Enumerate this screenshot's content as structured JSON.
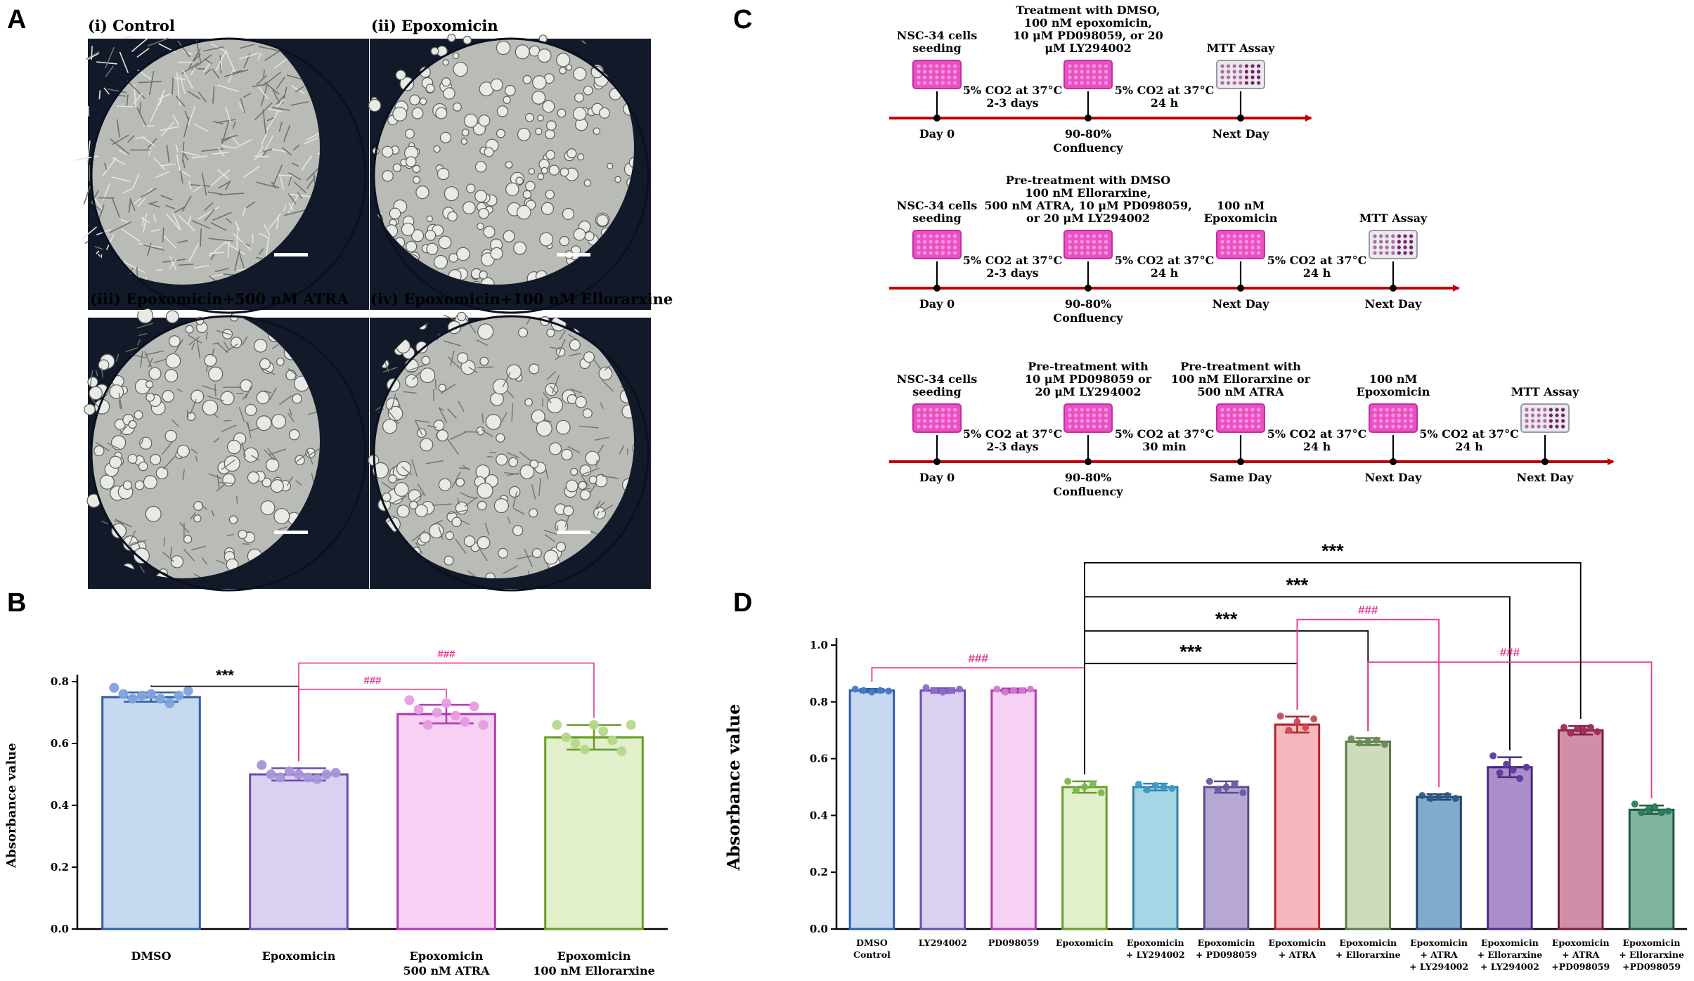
{
  "panels": {
    "a": "A",
    "b": "B",
    "c": "C",
    "d": "D"
  },
  "micrographs": [
    {
      "title": "(i) Control",
      "kind": "dense"
    },
    {
      "title": "(ii) Epoxomicin",
      "kind": "clumps"
    },
    {
      "title": "(iii) Epoxomicin+500 nM ATRA",
      "kind": "mixed"
    },
    {
      "title": "(iv) Epoxomicin+100 nM Ellorarxine",
      "kind": "round"
    }
  ],
  "timelines": [
    {
      "events": [
        {
          "top": [
            "NSC-34 cells",
            "seeding"
          ],
          "icon": "plate-icon",
          "bottom": [
            "Day 0"
          ]
        },
        {
          "top": [
            "Treatment with DMSO,",
            "100 nM epoxomicin,",
            "10 μM PD098059,  or 20",
            "μM LY294002"
          ],
          "icon": "plate-icon",
          "bottom": [
            "90-80%",
            "Confluency"
          ]
        },
        {
          "top": [
            "MTT Assay"
          ],
          "icon": "mtt-plate-icon",
          "bottom": [
            "Next Day"
          ]
        }
      ],
      "intervals": [
        [
          "5% CO2 at 37°C",
          "2-3 days"
        ],
        [
          "5% CO2 at 37°C",
          "24 h"
        ]
      ]
    },
    {
      "events": [
        {
          "top": [
            "NSC-34 cells",
            "seeding"
          ],
          "icon": "plate-icon",
          "bottom": [
            "Day 0"
          ]
        },
        {
          "top": [
            "Pre-treatment with DMSO",
            "100 nM Ellorarxine,",
            "500 nM ATRA, 10 μM PD098059,",
            "or  20 μM LY294002"
          ],
          "icon": "plate-icon",
          "bottom": [
            "90-80%",
            "Confluency"
          ]
        },
        {
          "top": [
            "100 nM",
            "Epoxomicin"
          ],
          "icon": "plate-icon",
          "bottom": [
            "Next Day"
          ]
        },
        {
          "top": [
            "MTT Assay"
          ],
          "icon": "mtt-plate-icon",
          "bottom": [
            "Next Day"
          ]
        }
      ],
      "intervals": [
        [
          "5% CO2 at 37°C",
          "2-3 days"
        ],
        [
          "5% CO2 at 37°C",
          "24 h"
        ],
        [
          "5% CO2 at 37°C",
          "24 h"
        ]
      ]
    },
    {
      "events": [
        {
          "top": [
            "NSC-34 cells",
            "seeding"
          ],
          "icon": "plate-icon",
          "bottom": [
            "Day 0"
          ]
        },
        {
          "top": [
            "Pre-treatment with",
            "10 μM PD098059 or",
            "20 μM LY294002"
          ],
          "icon": "plate-icon",
          "bottom": [
            "90-80%",
            "Confluency"
          ]
        },
        {
          "top": [
            "Pre-treatment with",
            "100 nM Ellorarxine or",
            "500 nM ATRA"
          ],
          "icon": "plate-icon",
          "bottom": [
            "Same Day"
          ]
        },
        {
          "top": [
            "100 nM",
            "Epoxomicin"
          ],
          "icon": "plate-icon",
          "bottom": [
            "Next Day"
          ]
        },
        {
          "top": [
            "MTT Assay"
          ],
          "icon": "mtt-plate-icon",
          "bottom": [
            "Next Day"
          ]
        }
      ],
      "intervals": [
        [
          "5% CO2 at 37°C",
          "2-3 days"
        ],
        [
          "5% CO2 at 37°C",
          "30 min"
        ],
        [
          "5% CO2 at 37°C",
          "24 h"
        ],
        [
          "5% CO2 at 37°C",
          "24 h"
        ]
      ]
    }
  ],
  "colors": {
    "black_bracket": "#000000",
    "pink_bracket": "#e8368f",
    "timeline_arrow": "#c00000",
    "plate": "#ec4fc4"
  },
  "chart_data": [
    {
      "type": "bar",
      "ylabel": "Absorbance value",
      "ylim": [
        0,
        0.8
      ],
      "yticks": [
        "0.0",
        "0.2",
        "0.4",
        "0.6",
        "0.8"
      ],
      "categories": [
        [
          "DMSO"
        ],
        [
          "Epoxomicin"
        ],
        [
          "Epoxomicin",
          "500 nM ATRA"
        ],
        [
          "Epoxomicin",
          "100 nM Ellorarxine"
        ]
      ],
      "values": [
        0.75,
        0.5,
        0.695,
        0.62
      ],
      "errors": [
        0.015,
        0.02,
        0.03,
        0.04
      ],
      "points": [
        [
          0.78,
          0.76,
          0.745,
          0.755,
          0.76,
          0.745,
          0.73,
          0.755,
          0.77
        ],
        [
          0.53,
          0.5,
          0.49,
          0.51,
          0.5,
          0.49,
          0.485,
          0.5,
          0.505
        ],
        [
          0.74,
          0.71,
          0.66,
          0.7,
          0.73,
          0.69,
          0.67,
          0.72,
          0.66
        ],
        [
          0.66,
          0.62,
          0.6,
          0.58,
          0.66,
          0.64,
          0.61,
          0.575,
          0.66
        ]
      ],
      "fill_colors": [
        "#c6d9f0",
        "#dad0f1",
        "#f6d1f3",
        "#e2efcb"
      ],
      "edge_colors": [
        "#2f5fa8",
        "#6a4cae",
        "#b13ab0",
        "#6a9a2a"
      ],
      "dot_colors": [
        "#7ea2dc",
        "#a894da",
        "#e79ce0",
        "#b3d98a"
      ],
      "comparisons": [
        {
          "from": 0,
          "to": 1,
          "label": "***",
          "color": "black",
          "y": 0.785
        },
        {
          "from": 1,
          "to": 2,
          "label": "###",
          "color": "pink",
          "y": 0.775
        },
        {
          "from": 1,
          "to": 3,
          "label": "###",
          "color": "pink",
          "y": 0.86
        }
      ],
      "grid": false
    },
    {
      "type": "bar",
      "ylabel": "Absorbance value",
      "ylim": [
        0,
        1.0
      ],
      "yticks": [
        "0.0",
        "0.2",
        "0.4",
        "0.6",
        "0.8",
        "1.0"
      ],
      "categories": [
        [
          "DMSO",
          "Control"
        ],
        [
          "LY294002"
        ],
        [
          "PD098059"
        ],
        [
          "Epoxomicin"
        ],
        [
          "Epoxomicin",
          "+ LY294002"
        ],
        [
          "Epoxomicin",
          "+ PD098059"
        ],
        [
          "Epoxomicin",
          "+ ATRA"
        ],
        [
          "Epoxomicin",
          "+ Ellorarxine"
        ],
        [
          "Epoxomicin",
          "+ ATRA",
          "+ LY294002"
        ],
        [
          "Epoxomicin",
          "+ Ellorarxine",
          "+ LY294002"
        ],
        [
          "Epoxomicin",
          "+ ATRA",
          "+PD098059"
        ],
        [
          "Epoxomicin",
          "+ Ellorarxine",
          "+PD098059"
        ]
      ],
      "values": [
        0.84,
        0.84,
        0.84,
        0.5,
        0.5,
        0.5,
        0.72,
        0.66,
        0.465,
        0.57,
        0.7,
        0.42
      ],
      "errors": [
        0.006,
        0.008,
        0.007,
        0.02,
        0.012,
        0.02,
        0.028,
        0.012,
        0.01,
        0.035,
        0.015,
        0.015
      ],
      "points": [
        [
          0.845,
          0.84,
          0.835,
          0.84,
          0.838
        ],
        [
          0.85,
          0.84,
          0.835,
          0.84,
          0.845
        ],
        [
          0.845,
          0.835,
          0.84,
          0.84,
          0.845
        ],
        [
          0.52,
          0.49,
          0.5,
          0.51,
          0.48
        ],
        [
          0.51,
          0.49,
          0.505,
          0.5,
          0.495
        ],
        [
          0.52,
          0.49,
          0.5,
          0.51,
          0.48
        ],
        [
          0.75,
          0.7,
          0.73,
          0.71,
          0.74
        ],
        [
          0.67,
          0.655,
          0.66,
          0.665,
          0.65
        ],
        [
          0.47,
          0.46,
          0.465,
          0.47,
          0.46
        ],
        [
          0.61,
          0.55,
          0.58,
          0.56,
          0.53,
          0.57
        ],
        [
          0.71,
          0.69,
          0.705,
          0.7,
          0.71,
          0.695
        ],
        [
          0.44,
          0.41,
          0.42,
          0.43,
          0.41,
          0.415
        ]
      ],
      "fill_colors": [
        "#c6d9f0",
        "#dad0f1",
        "#f6d1f3",
        "#e2efcb",
        "#a6d5e6",
        "#b6a8d2",
        "#f5b9bd",
        "#cfdcbc",
        "#81aacd",
        "#a98ec9",
        "#cf8fa9",
        "#80b39b"
      ],
      "edge_colors": [
        "#2f5fa8",
        "#6a4cae",
        "#b13ab0",
        "#6a9a2a",
        "#2f85a8",
        "#5b4a8a",
        "#b0272d",
        "#5e7a4a",
        "#23436a",
        "#4b2a80",
        "#7a1e3e",
        "#1e5a3e"
      ],
      "dot_colors": [
        "#4a7ac8",
        "#8a6ac8",
        "#d27ad0",
        "#7ab84a",
        "#3a9ac8",
        "#6a5aa8",
        "#c84a5a",
        "#6a8a5a",
        "#2a5a8a",
        "#5a3aa0",
        "#a02a5a",
        "#2a7a5a"
      ],
      "comparisons": [
        {
          "from": 0,
          "to": 3,
          "label": "###",
          "color": "pink",
          "y": 0.92
        },
        {
          "from": 3,
          "to": 6,
          "label": "***",
          "color": "black",
          "y": 0.935
        },
        {
          "from": 3,
          "to": 7,
          "label": "***",
          "color": "black",
          "y": 1.05
        },
        {
          "from": 6,
          "to": 8,
          "label": "###",
          "color": "pink",
          "y": 1.09
        },
        {
          "from": 3,
          "to": 9,
          "label": "***",
          "color": "black",
          "y": 1.17
        },
        {
          "from": 7,
          "to": 11,
          "label": "###",
          "color": "pink",
          "y": 0.94
        },
        {
          "from": 3,
          "to": 10,
          "label": "***",
          "color": "black",
          "y": 1.29
        }
      ],
      "grid": false
    }
  ]
}
